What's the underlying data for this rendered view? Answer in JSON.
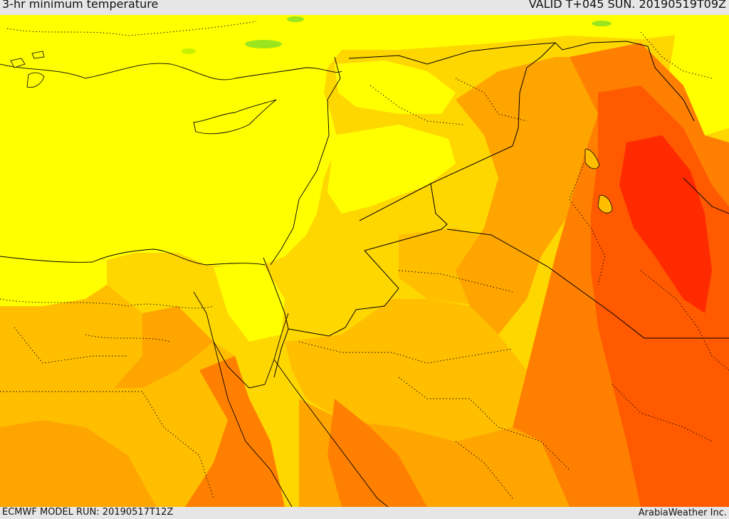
{
  "header": {
    "title": "3-hr minimum temperature",
    "valid": "VALID T+045 SUN. 20190519T09Z"
  },
  "footer": {
    "model_run": "ECMWF MODEL RUN: 20190517T12Z",
    "credit": "ArabiaWeather Inc."
  },
  "palette": {
    "yellow": "#ffff00",
    "gold": "#ffd700",
    "light_orange": "#ffbf00",
    "orange": "#ffa500",
    "dark_orange": "#ff8000",
    "red_orange": "#ff5a00",
    "red": "#ff2a00",
    "green": "#9be51e",
    "outline": "#000000"
  }
}
